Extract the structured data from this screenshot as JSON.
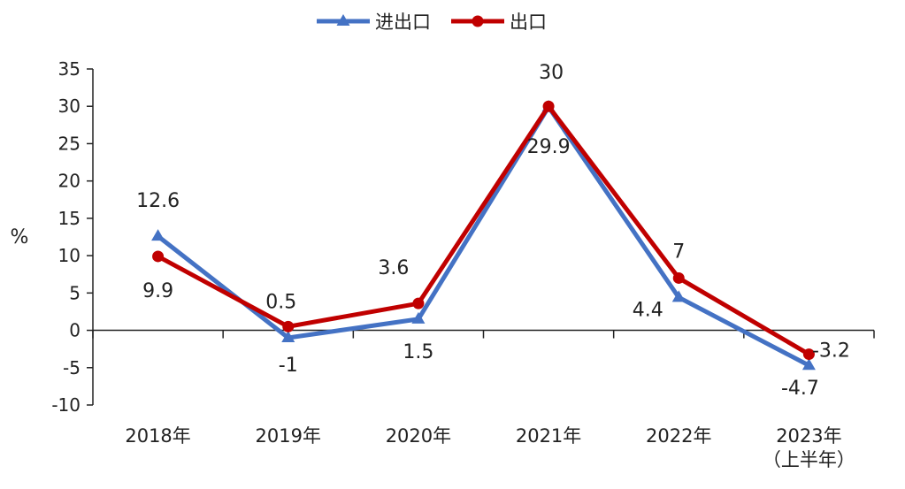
{
  "chart_data": {
    "type": "line",
    "title": "",
    "xlabel": "",
    "ylabel": "%",
    "ylim": [
      -10,
      35
    ],
    "ytick_step": 5,
    "grid": false,
    "legend_position": "top-center",
    "categories": [
      [
        "2018年"
      ],
      [
        "2019年"
      ],
      [
        "2020年"
      ],
      [
        "2021年"
      ],
      [
        "2022年"
      ],
      [
        "2023年",
        "（上半年）"
      ]
    ],
    "series": [
      {
        "name": "进出口",
        "marker": "triangle",
        "color": "#4472C4",
        "values": [
          12.6,
          -1,
          1.5,
          29.9,
          4.4,
          -4.7
        ],
        "labels": [
          "12.6",
          "-1",
          "1.5",
          "29.9",
          "4.4",
          "-4.7"
        ]
      },
      {
        "name": "出口",
        "marker": "circle",
        "color": "#C00000",
        "values": [
          9.9,
          0.5,
          3.6,
          30,
          7,
          -3.2
        ],
        "labels": [
          "9.9",
          "0.5",
          "3.6",
          "30",
          "7",
          "-3.2"
        ]
      }
    ]
  }
}
